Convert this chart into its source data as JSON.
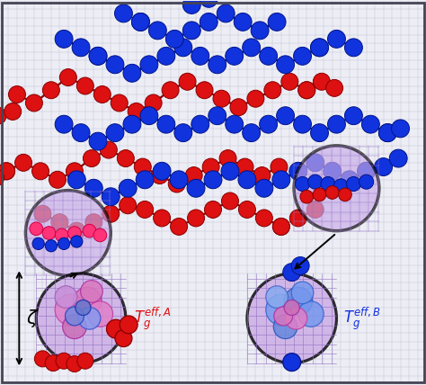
{
  "bg_color": "#ededf5",
  "grid_color": "#c0c0d0",
  "red_color": "#dd1111",
  "blue_color": "#1133dd",
  "red_dark": "#880000",
  "blue_dark": "#001488",
  "fig_width": 4.74,
  "fig_height": 4.28,
  "dpi": 100,
  "border_color": "#444455"
}
